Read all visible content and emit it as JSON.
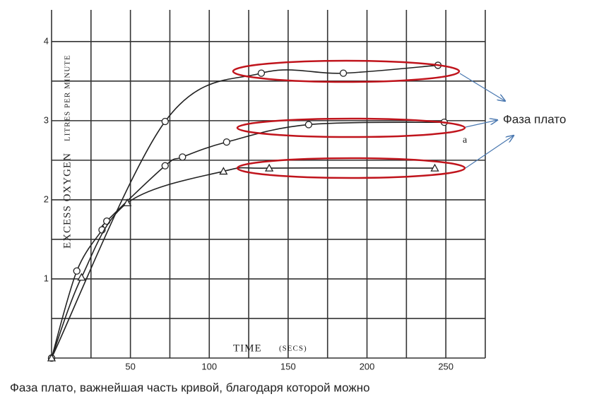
{
  "chart_data": {
    "type": "line",
    "y_label": "EXCESS OXYGEN",
    "y_label_units": "LITRES PER MINUTE",
    "x_label": "TIME",
    "x_label_units": "(SECS)",
    "xlim": [
      0,
      275
    ],
    "ylim": [
      0,
      4.4
    ],
    "xticks": [
      50,
      100,
      150,
      200,
      250
    ],
    "yticks": [
      1,
      2,
      3,
      4
    ],
    "xgrid": [
      25,
      75,
      125,
      175,
      225,
      275
    ],
    "ygrid": [
      0.5,
      1.5,
      2.5,
      3.5
    ],
    "grid": true,
    "series": [
      {
        "color": "#222222",
        "marker": "circle",
        "x": [
          0,
          72,
          133,
          185,
          245
        ],
        "values": [
          0,
          2.99,
          3.6,
          3.6,
          3.7
        ]
      },
      {
        "color": "#222222",
        "marker": "circle",
        "x": [
          0,
          16,
          32,
          35,
          72,
          83,
          111,
          163,
          249
        ],
        "values": [
          0,
          1.1,
          1.62,
          1.73,
          2.43,
          2.54,
          2.73,
          2.95,
          2.98
        ]
      },
      {
        "color": "#222222",
        "marker": "triangle",
        "x": [
          0,
          19,
          48,
          109,
          138,
          243
        ],
        "values": [
          0,
          1.02,
          1.96,
          2.36,
          2.4,
          2.4
        ]
      }
    ],
    "point_note": "a",
    "annotation": "Фаза плато",
    "caption": "Фаза плато, важнейшая часть кривой, благодаря которой можно"
  }
}
